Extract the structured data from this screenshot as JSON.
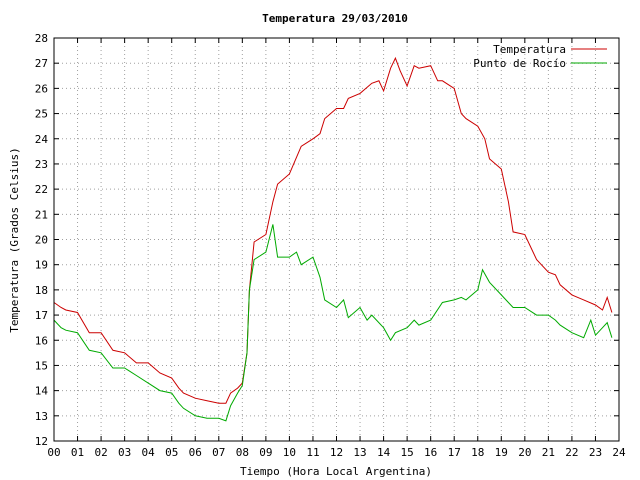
{
  "chart_data": {
    "type": "line",
    "title": "Temperatura 29/03/2010",
    "xlabel": "Tiempo (Hora Local Argentina)",
    "ylabel": "Temperatura (Grados Celsius)",
    "xlim": [
      0,
      24
    ],
    "ylim": [
      12,
      28
    ],
    "grid": true,
    "legend_position": "top-right",
    "x_tick_labels": [
      "00",
      "01",
      "02",
      "03",
      "04",
      "05",
      "06",
      "07",
      "08",
      "09",
      "10",
      "11",
      "12",
      "13",
      "14",
      "15",
      "16",
      "17",
      "18",
      "19",
      "20",
      "21",
      "22",
      "23",
      "24"
    ],
    "y_ticks": [
      12,
      13,
      14,
      15,
      16,
      17,
      18,
      19,
      20,
      21,
      22,
      23,
      24,
      25,
      26,
      27,
      28
    ],
    "series": [
      {
        "name": "Temperatura",
        "color": "#cc0000",
        "x": [
          0,
          0.3,
          0.5,
          1.0,
          1.5,
          2.0,
          2.5,
          3.0,
          3.5,
          4.0,
          4.5,
          5.0,
          5.3,
          5.5,
          6.0,
          6.5,
          7.0,
          7.3,
          7.5,
          7.8,
          8.0,
          8.2,
          8.3,
          8.5,
          9.0,
          9.3,
          9.5,
          10.0,
          10.5,
          11.0,
          11.3,
          11.5,
          12.0,
          12.3,
          12.5,
          13.0,
          13.5,
          13.8,
          14.0,
          14.3,
          14.5,
          14.7,
          15.0,
          15.3,
          15.5,
          16.0,
          16.3,
          16.5,
          17.0,
          17.3,
          17.5,
          18.0,
          18.3,
          18.5,
          19.0,
          19.3,
          19.5,
          20.0,
          20.3,
          20.5,
          21.0,
          21.3,
          21.5,
          22.0,
          22.5,
          23.0,
          23.3,
          23.5,
          23.7
        ],
        "y": [
          17.5,
          17.3,
          17.2,
          17.1,
          16.3,
          16.3,
          15.6,
          15.5,
          15.1,
          15.1,
          14.7,
          14.5,
          14.1,
          13.9,
          13.7,
          13.6,
          13.5,
          13.5,
          13.9,
          14.1,
          14.3,
          15.5,
          18.0,
          19.9,
          20.2,
          21.5,
          22.2,
          22.6,
          23.7,
          24.0,
          24.2,
          24.8,
          25.2,
          25.2,
          25.6,
          25.8,
          26.2,
          26.3,
          25.9,
          26.8,
          27.2,
          26.7,
          26.1,
          26.9,
          26.8,
          26.9,
          26.3,
          26.3,
          26.0,
          25.0,
          24.8,
          24.5,
          24.0,
          23.2,
          22.8,
          21.5,
          20.3,
          20.2,
          19.6,
          19.2,
          18.7,
          18.6,
          18.2,
          17.8,
          17.6,
          17.4,
          17.2,
          17.7,
          17.1
        ]
      },
      {
        "name": "Punto de Rocío",
        "color": "#00aa00",
        "x": [
          0,
          0.3,
          0.5,
          1.0,
          1.5,
          2.0,
          2.5,
          3.0,
          3.5,
          4.0,
          4.5,
          5.0,
          5.3,
          5.5,
          6.0,
          6.5,
          7.0,
          7.3,
          7.5,
          7.8,
          8.0,
          8.2,
          8.3,
          8.5,
          9.0,
          9.3,
          9.5,
          9.8,
          10.0,
          10.3,
          10.5,
          11.0,
          11.3,
          11.5,
          12.0,
          12.3,
          12.5,
          13.0,
          13.3,
          13.5,
          14.0,
          14.3,
          14.5,
          15.0,
          15.3,
          15.5,
          16.0,
          16.5,
          17.0,
          17.3,
          17.5,
          18.0,
          18.2,
          18.5,
          19.0,
          19.3,
          19.5,
          20.0,
          20.5,
          21.0,
          21.3,
          21.5,
          22.0,
          22.5,
          22.8,
          23.0,
          23.3,
          23.5,
          23.7
        ],
        "y": [
          16.8,
          16.5,
          16.4,
          16.3,
          15.6,
          15.5,
          14.9,
          14.9,
          14.6,
          14.3,
          14.0,
          13.9,
          13.5,
          13.3,
          13.0,
          12.9,
          12.9,
          12.8,
          13.4,
          13.9,
          14.2,
          15.5,
          18.0,
          19.2,
          19.5,
          20.6,
          19.3,
          19.3,
          19.3,
          19.5,
          19.0,
          19.3,
          18.5,
          17.6,
          17.3,
          17.6,
          16.9,
          17.3,
          16.8,
          17.0,
          16.5,
          16.0,
          16.3,
          16.5,
          16.8,
          16.6,
          16.8,
          17.5,
          17.6,
          17.7,
          17.6,
          18.0,
          18.8,
          18.3,
          17.8,
          17.5,
          17.3,
          17.3,
          17.0,
          17.0,
          16.8,
          16.6,
          16.3,
          16.1,
          16.8,
          16.2,
          16.5,
          16.7,
          16.1
        ]
      }
    ]
  }
}
